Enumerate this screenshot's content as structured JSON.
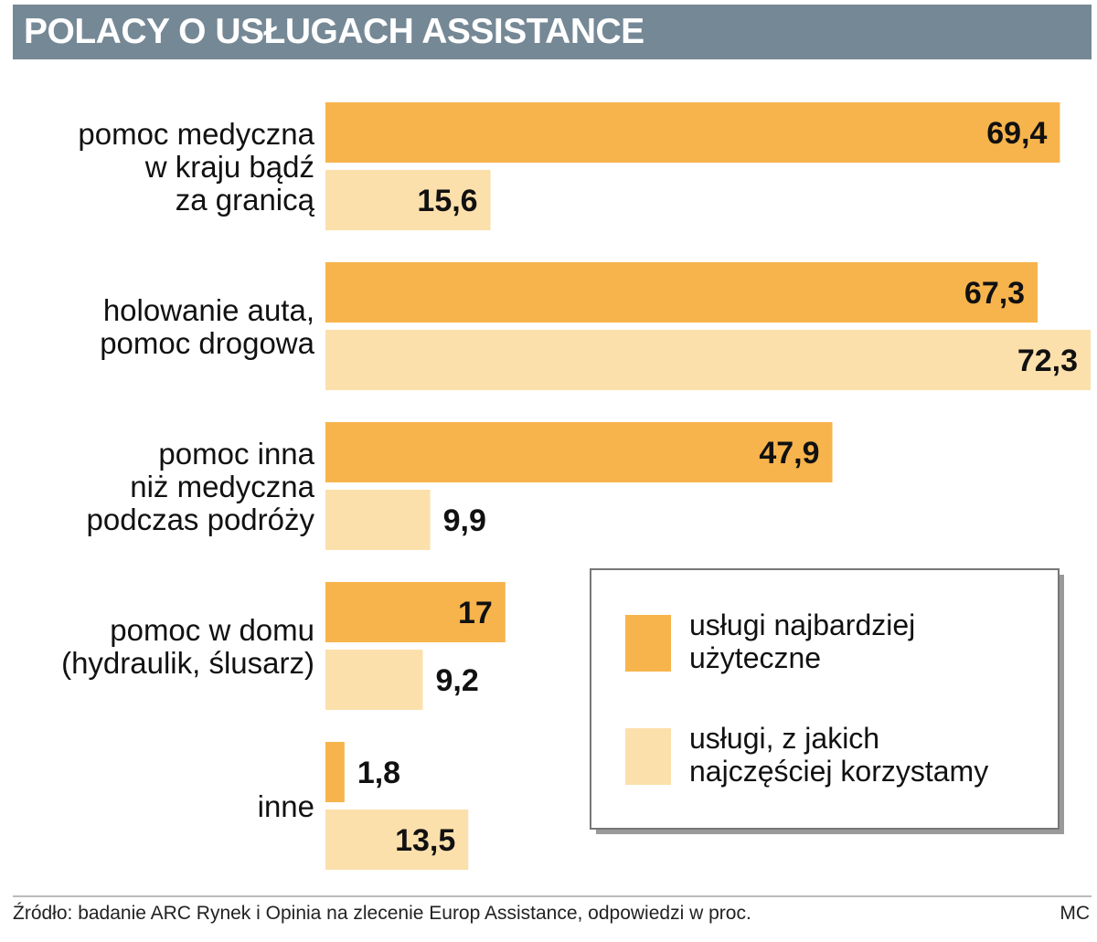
{
  "colors": {
    "header_bg": "#758896",
    "series_a": "#f7b44c",
    "series_b": "#fce0ac"
  },
  "chart_data": {
    "type": "bar",
    "orientation": "horizontal",
    "title": "POLACY O USŁUGACH ASSISTANCE",
    "categories": [
      [
        "pomoc medyczna",
        "w kraju bądź",
        "za granicą"
      ],
      [
        "holowanie auta,",
        "pomoc drogowa"
      ],
      [
        "pomoc inna",
        "niż medyczna",
        "podczas podróży"
      ],
      [
        "pomoc w domu",
        "(hydraulik, ślusarz)"
      ],
      [
        "inne"
      ]
    ],
    "series": [
      {
        "name": "usługi najbardziej użyteczne",
        "legend_lines": [
          "usługi najbardziej",
          "użyteczne"
        ],
        "values": [
          69.4,
          67.3,
          47.9,
          17,
          1.8
        ],
        "labels": [
          "69,4",
          "67,3",
          "47,9",
          "17",
          "1,8"
        ]
      },
      {
        "name": "usługi, z jakich najczęściej korzystamy",
        "legend_lines": [
          "usługi, z jakich",
          "najczęściej korzystamy"
        ],
        "values": [
          15.6,
          72.3,
          9.9,
          9.2,
          13.5
        ],
        "labels": [
          "15,6",
          "72,3",
          "9,9",
          "9,2",
          "13,5"
        ]
      }
    ],
    "xlim": [
      0,
      72.3
    ],
    "unit": "%",
    "legend_position": "bottom-right"
  },
  "footer": {
    "source": "Źródło: badanie ARC Rynek i Opinia na zlecenie Europ Assistance, odpowiedzi w proc.",
    "credit": "MC"
  }
}
